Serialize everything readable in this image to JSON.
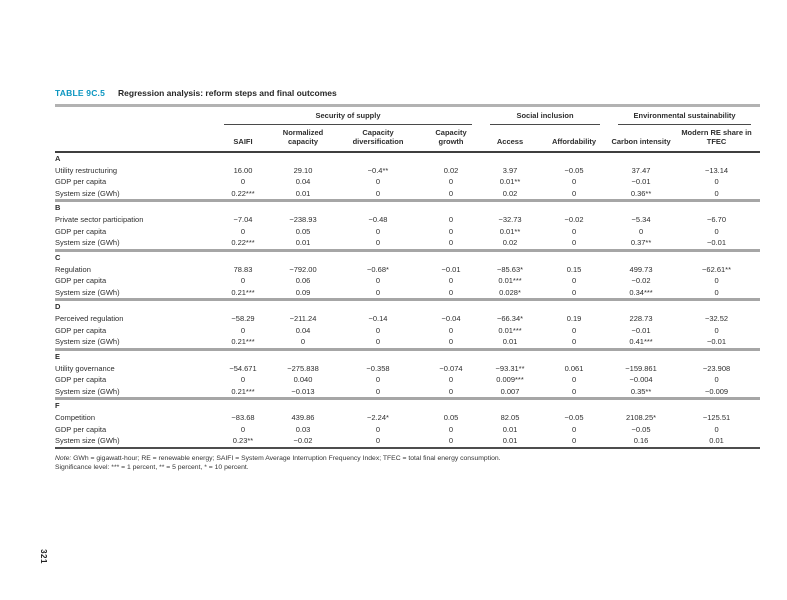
{
  "page": {
    "number": "321"
  },
  "table": {
    "label": "TABLE 9C.5",
    "caption": "Regression analysis: reform steps and final outcomes",
    "accent_color": "#0a95c0",
    "groups": [
      {
        "label": "Security of supply",
        "span": 4
      },
      {
        "label": "Social inclusion",
        "span": 2
      },
      {
        "label": "Environmental sustainability",
        "span": 2
      }
    ],
    "columns": [
      "SAIFI",
      "Normalized capacity",
      "Capacity diversification",
      "Capacity growth",
      "Access",
      "Affordability",
      "Carbon intensity",
      "Modern RE share in TFEC"
    ],
    "sections": [
      {
        "id": "A",
        "rows": [
          {
            "label": "Utility restructuring",
            "values": [
              "16.00",
              "29.10",
              "−0.4**",
              "0.02",
              "3.97",
              "−0.05",
              "37.47",
              "−13.14"
            ]
          },
          {
            "label": "GDP per capita",
            "values": [
              "0",
              "0.04",
              "0",
              "0",
              "0.01**",
              "0",
              "−0.01",
              "0"
            ]
          },
          {
            "label": "System size (GWh)",
            "values": [
              "0.22***",
              "0.01",
              "0",
              "0",
              "0.02",
              "0",
              "0.36**",
              "0"
            ]
          }
        ]
      },
      {
        "id": "B",
        "rows": [
          {
            "label": "Private sector participation",
            "values": [
              "−7.04",
              "−238.93",
              "−0.48",
              "0",
              "−32.73",
              "−0.02",
              "−5.34",
              "−6.70"
            ]
          },
          {
            "label": "GDP per capita",
            "values": [
              "0",
              "0.05",
              "0",
              "0",
              "0.01**",
              "0",
              "0",
              "0"
            ]
          },
          {
            "label": "System size (GWh)",
            "values": [
              "0.22***",
              "0.01",
              "0",
              "0",
              "0.02",
              "0",
              "0.37**",
              "−0.01"
            ]
          }
        ]
      },
      {
        "id": "C",
        "rows": [
          {
            "label": "Regulation",
            "values": [
              "78.83",
              "−792.00",
              "−0.68*",
              "−0.01",
              "−85.63*",
              "0.15",
              "499.73",
              "−62.61**"
            ]
          },
          {
            "label": "GDP per capita",
            "values": [
              "0",
              "0.06",
              "0",
              "0",
              "0.01***",
              "0",
              "−0.02",
              "0"
            ]
          },
          {
            "label": "System size (GWh)",
            "values": [
              "0.21***",
              "0.09",
              "0",
              "0",
              "0.028*",
              "0",
              "0.34***",
              "0"
            ]
          }
        ]
      },
      {
        "id": "D",
        "rows": [
          {
            "label": "Perceived regulation",
            "values": [
              "−58.29",
              "−211.24",
              "−0.14",
              "−0.04",
              "−66.34*",
              "0.19",
              "228.73",
              "−32.52"
            ]
          },
          {
            "label": "GDP per capita",
            "values": [
              "0",
              "0.04",
              "0",
              "0",
              "0.01***",
              "0",
              "−0.01",
              "0"
            ]
          },
          {
            "label": "System size (GWh)",
            "values": [
              "0.21***",
              "0",
              "0",
              "0",
              "0.01",
              "0",
              "0.41***",
              "−0.01"
            ]
          }
        ]
      },
      {
        "id": "E",
        "rows": [
          {
            "label": "Utility governance",
            "values": [
              "−54.671",
              "−275.838",
              "−0.358",
              "−0.074",
              "−93.31**",
              "0.061",
              "−159.861",
              "−23.908"
            ]
          },
          {
            "label": "GDP per capita",
            "values": [
              "0",
              "0.040",
              "0",
              "0",
              "0.009***",
              "0",
              "−0.004",
              "0"
            ]
          },
          {
            "label": "System size (GWh)",
            "values": [
              "0.21***",
              "−0.013",
              "0",
              "0",
              "0.007",
              "0",
              "0.35**",
              "−0.009"
            ]
          }
        ]
      },
      {
        "id": "F",
        "rows": [
          {
            "label": "Competition",
            "values": [
              "−83.68",
              "439.86",
              "−2.24*",
              "0.05",
              "82.05",
              "−0.05",
              "2108.25*",
              "−125.51"
            ]
          },
          {
            "label": "GDP per capita",
            "values": [
              "0",
              "0.03",
              "0",
              "0",
              "0.01",
              "0",
              "−0.05",
              "0"
            ]
          },
          {
            "label": "System size (GWh)",
            "values": [
              "0.23**",
              "−0.02",
              "0",
              "0",
              "0.01",
              "0",
              "0.16",
              "0.01"
            ]
          }
        ]
      }
    ]
  },
  "notes": {
    "note_label": "Note:",
    "note_text": "GWh = gigawatt-hour; RE = renewable energy; SAIFI = System Average Interruption Frequency Index; TFEC = total final energy consumption.",
    "significance": "Significance level: *** = 1 percent, ** = 5 percent, * = 10 percent."
  }
}
